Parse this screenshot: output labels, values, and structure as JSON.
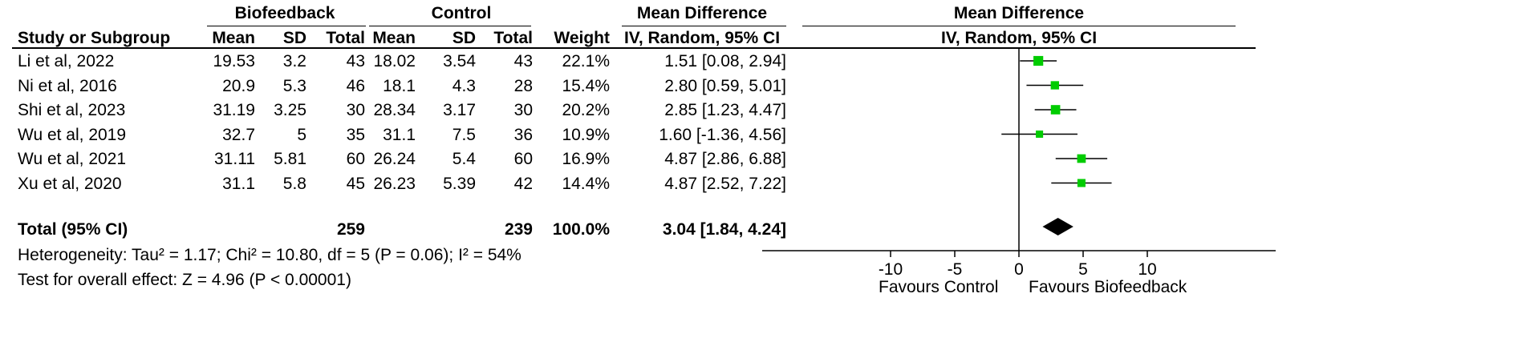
{
  "chart_data": {
    "type": "forest",
    "groups": {
      "experimental": "Biofeedback",
      "control": "Control"
    },
    "columns": {
      "study": "Study or Subgroup",
      "mean": "Mean",
      "sd": "SD",
      "total": "Total",
      "weight": "Weight",
      "effect_header": "Mean Difference",
      "effect_method": "IV, Random, 95% CI"
    },
    "studies": [
      {
        "name": "Li et al, 2022",
        "exp_mean": "19.53",
        "exp_sd": "3.2",
        "exp_total": "43",
        "ctrl_mean": "18.02",
        "ctrl_sd": "3.54",
        "ctrl_total": "43",
        "weight": "22.1%",
        "ci_text": "1.51 [0.08, 2.94]",
        "md": 1.51,
        "lo": 0.08,
        "hi": 2.94
      },
      {
        "name": "Ni et al, 2016",
        "exp_mean": "20.9",
        "exp_sd": "5.3",
        "exp_total": "46",
        "ctrl_mean": "18.1",
        "ctrl_sd": "4.3",
        "ctrl_total": "28",
        "weight": "15.4%",
        "ci_text": "2.80 [0.59, 5.01]",
        "md": 2.8,
        "lo": 0.59,
        "hi": 5.01
      },
      {
        "name": "Shi et al, 2023",
        "exp_mean": "31.19",
        "exp_sd": "3.25",
        "exp_total": "30",
        "ctrl_mean": "28.34",
        "ctrl_sd": "3.17",
        "ctrl_total": "30",
        "weight": "20.2%",
        "ci_text": "2.85 [1.23, 4.47]",
        "md": 2.85,
        "lo": 1.23,
        "hi": 4.47
      },
      {
        "name": "Wu et al, 2019",
        "exp_mean": "32.7",
        "exp_sd": "5",
        "exp_total": "35",
        "ctrl_mean": "31.1",
        "ctrl_sd": "7.5",
        "ctrl_total": "36",
        "weight": "10.9%",
        "ci_text": "1.60 [-1.36, 4.56]",
        "md": 1.6,
        "lo": -1.36,
        "hi": 4.56
      },
      {
        "name": "Wu et al, 2021",
        "exp_mean": "31.11",
        "exp_sd": "5.81",
        "exp_total": "60",
        "ctrl_mean": "26.24",
        "ctrl_sd": "5.4",
        "ctrl_total": "60",
        "weight": "16.9%",
        "ci_text": "4.87 [2.86, 6.88]",
        "md": 4.87,
        "lo": 2.86,
        "hi": 6.88
      },
      {
        "name": "Xu et al, 2020",
        "exp_mean": "31.1",
        "exp_sd": "5.8",
        "exp_total": "45",
        "ctrl_mean": "26.23",
        "ctrl_sd": "5.39",
        "ctrl_total": "42",
        "weight": "14.4%",
        "ci_text": "4.87 [2.52, 7.22]",
        "md": 4.87,
        "lo": 2.52,
        "hi": 7.22
      }
    ],
    "total": {
      "label": "Total (95% CI)",
      "exp_total": "259",
      "ctrl_total": "239",
      "weight": "100.0%",
      "ci_text": "3.04 [1.84, 4.24]",
      "md": 3.04,
      "lo": 1.84,
      "hi": 4.24
    },
    "heterogeneity": "Heterogeneity: Tau² = 1.17; Chi² = 10.80, df = 5 (P = 0.06); I² = 54%",
    "overall_effect": "Test for overall effect: Z = 4.96 (P < 0.00001)",
    "axis": {
      "xlim": [
        -20,
        20
      ],
      "ticks": [
        -10,
        -5,
        0,
        5,
        10
      ],
      "tick_labels": [
        "-10",
        "-5",
        "0",
        "5",
        "10"
      ],
      "favours_left": "Favours Control",
      "favours_right": "Favours Biofeedback"
    },
    "colors": {
      "point": "#00cc00",
      "diamond": "#000000",
      "line": "#000000"
    }
  }
}
